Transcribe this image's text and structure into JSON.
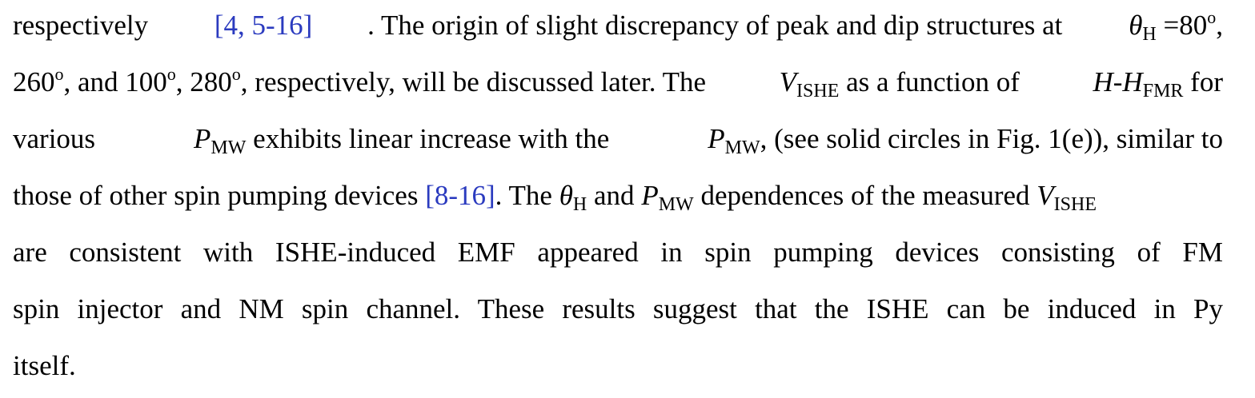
{
  "colors": {
    "text": "#000000",
    "citation": "#2b3bbf",
    "background": "#ffffff"
  },
  "paragraph": {
    "line1": {
      "w1": "respectively",
      "cite1": "[4, 5-16]",
      "w2": ". The origin of slight discrepancy of peak and dip structures at",
      "theta": "θ",
      "sub_h": "H",
      "w3": " =80",
      "deg": "o",
      "w4": ","
    },
    "line2": {
      "w1": "260",
      "deg1": "o",
      "w2": ", and 100",
      "deg2": "o",
      "w3": ", 280",
      "deg3": "o",
      "w4": ", respectively, will be discussed later. The",
      "v": "V",
      "sub_ishe": "ISHE",
      "w5": " as a function of",
      "h": "H-H",
      "sub_fmr": "FMR",
      "w6": " for"
    },
    "line3": {
      "w1": "various",
      "p1": "P",
      "sub_mw1": "MW",
      "w2": " exhibits linear increase with the",
      "p2": "P",
      "sub_mw2": "MW",
      "w3": ", (see solid circles in Fig. 1(e)), similar to"
    },
    "line4": {
      "w1": "those of other spin pumping devices",
      "cite2": "[8-16]",
      "w2": ". The",
      "theta": "θ",
      "sub_h": "H",
      "w3": " and",
      "p": "P",
      "sub_mw": "MW",
      "w4": " dependences of the measured",
      "v": "V",
      "sub_ishe": "ISHE"
    },
    "line5": {
      "text": "are consistent with ISHE-induced EMF appeared in spin pumping devices consisting of FM"
    },
    "line6": {
      "text": "spin injector and NM spin channel. These results suggest that the ISHE can be induced in Py"
    },
    "line7": {
      "text": "itself."
    }
  }
}
